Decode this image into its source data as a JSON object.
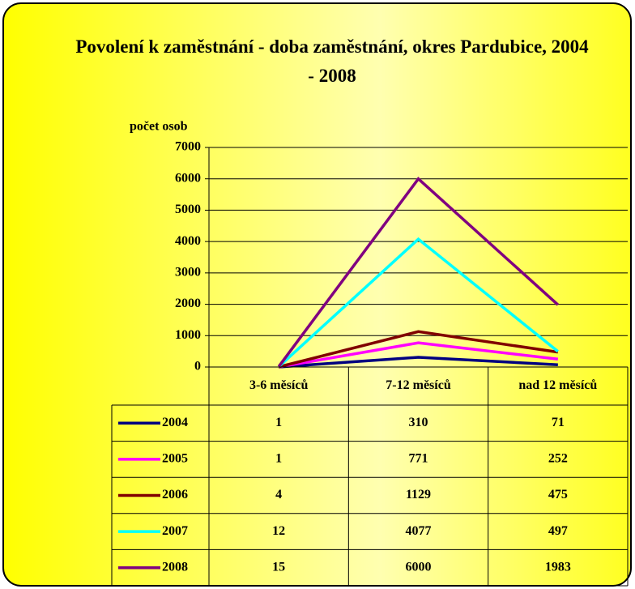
{
  "chart_data": {
    "type": "line",
    "title": "Povolení k zaměstnání - doba zaměstnání, okres Pardubice, 2004 - 2008",
    "y_label": "počet osob",
    "categories": [
      "3-6 měsíců",
      "7-12 měsíců",
      "nad 12 měsíců"
    ],
    "series": [
      {
        "name": "2004",
        "color": "#000080",
        "values": [
          1,
          310,
          71
        ]
      },
      {
        "name": "2005",
        "color": "#ff00ff",
        "values": [
          1,
          771,
          252
        ]
      },
      {
        "name": "2006",
        "color": "#800000",
        "values": [
          4,
          1129,
          475
        ]
      },
      {
        "name": "2007",
        "color": "#00ffff",
        "values": [
          12,
          4077,
          497
        ]
      },
      {
        "name": "2008",
        "color": "#800080",
        "values": [
          15,
          6000,
          1983
        ]
      }
    ],
    "ylim": [
      0,
      7000
    ],
    "yticks": [
      0,
      1000,
      2000,
      3000,
      4000,
      5000,
      6000,
      7000
    ],
    "grid": true,
    "data_table": true
  }
}
